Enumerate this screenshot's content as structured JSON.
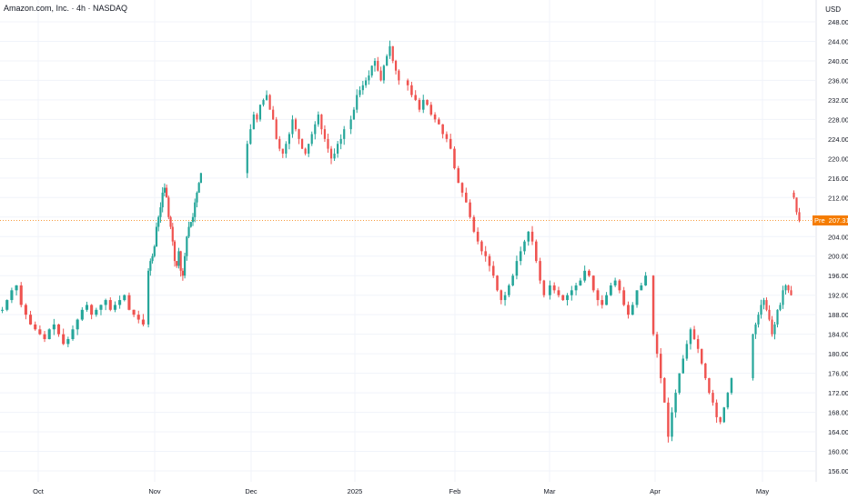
{
  "header": {
    "title": "Amazon.com, Inc. · 4h · NASDAQ",
    "currency": "USD"
  },
  "price_tag": {
    "label": "Pre",
    "value": "207.31"
  },
  "colors": {
    "up": "#26a69a",
    "down": "#ef5350",
    "grid": "#f0f3fa",
    "text": "#131722",
    "tag": "#f57c00"
  },
  "chart_data": {
    "type": "candlestick",
    "title": "Amazon.com, Inc. · 4h · NASDAQ",
    "ylabel": "USD",
    "ylim": [
      154,
      250
    ],
    "y_ticks": [
      "156.00",
      "160.00",
      "164.00",
      "168.00",
      "172.00",
      "176.00",
      "180.00",
      "184.00",
      "188.00",
      "192.00",
      "196.00",
      "200.00",
      "204.00",
      "208.00",
      "212.00",
      "216.00",
      "220.00",
      "224.00",
      "228.00",
      "232.00",
      "236.00",
      "240.00",
      "244.00",
      "248.00"
    ],
    "x_ticks": [
      "Oct",
      "Nov",
      "Dec",
      "2025",
      "Feb",
      "Mar",
      "Apr",
      "May"
    ],
    "grid": true,
    "last_price": 207.31,
    "series": [
      {
        "month": "Oct",
        "closes": [
          189,
          191,
          193,
          194,
          190,
          188,
          186,
          185,
          184,
          183,
          185,
          186,
          184,
          182,
          183,
          185,
          187,
          189,
          190,
          188,
          189,
          190,
          191,
          189,
          190,
          191,
          192,
          189,
          188,
          187,
          186
        ]
      },
      {
        "month": "Nov",
        "closes": [
          197,
          199,
          200,
          202,
          206,
          208,
          210,
          213,
          214,
          212,
          208,
          206,
          203,
          199,
          198,
          201,
          197,
          196,
          200,
          204,
          206,
          207,
          208,
          211,
          213,
          215,
          217
        ]
      },
      {
        "month": "Dec",
        "closes": [
          223,
          226,
          229,
          228,
          231,
          232,
          233,
          230,
          228,
          224,
          222,
          221,
          223,
          225,
          228,
          226,
          224,
          222,
          221,
          223,
          225,
          227,
          229,
          226,
          224,
          222,
          220,
          221,
          223,
          224,
          226
        ]
      },
      {
        "month": "2025",
        "closes": [
          228,
          230,
          233,
          234,
          235,
          236,
          237,
          239,
          240,
          238,
          236,
          239,
          241,
          243,
          240,
          238,
          236
        ]
      },
      {
        "month": "Feb",
        "closes": [
          235,
          233,
          232,
          230,
          232,
          231,
          229,
          228,
          227,
          225,
          224,
          222,
          218,
          215,
          213,
          211,
          208,
          205,
          203,
          201,
          200,
          198,
          196,
          193,
          191,
          192,
          194,
          196,
          199,
          201,
          203,
          205,
          203,
          199,
          195,
          192
        ]
      },
      {
        "month": "Mar",
        "closes": [
          194,
          193,
          192,
          191,
          192,
          193,
          194,
          195,
          197,
          196,
          193,
          191,
          190,
          192,
          194,
          195,
          193,
          190,
          188,
          190,
          193,
          194,
          196
        ]
      },
      {
        "month": "Apr",
        "closes": [
          184,
          180,
          175,
          170,
          163,
          168,
          172,
          176,
          179,
          182,
          185,
          183,
          181,
          178,
          175,
          172,
          170,
          167,
          166,
          169,
          172,
          175
        ]
      },
      {
        "month": "May",
        "closes": [
          184,
          186,
          188,
          190,
          191,
          189,
          187,
          184,
          186,
          189,
          190,
          193,
          194,
          193,
          192,
          212,
          209,
          207.31
        ]
      }
    ]
  }
}
